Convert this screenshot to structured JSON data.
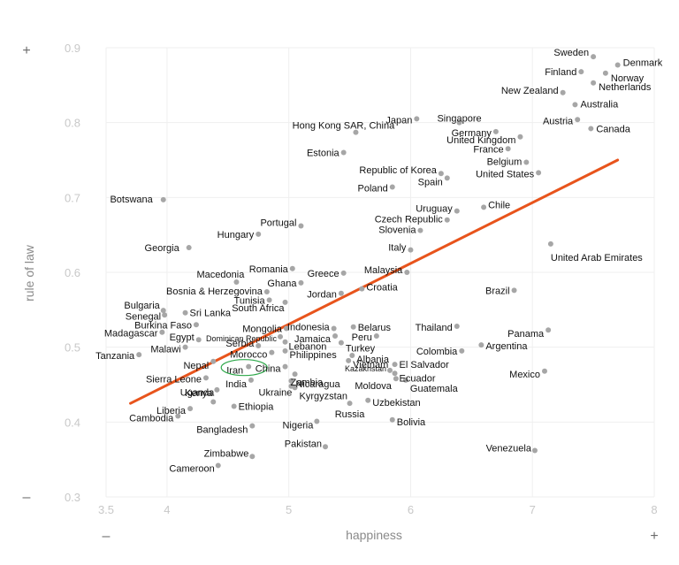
{
  "chart_data": {
    "type": "scatter",
    "xlabel": "happiness",
    "ylabel": "rule of law",
    "xlim": [
      3.5,
      8
    ],
    "ylim": [
      0.3,
      0.9
    ],
    "x_ticks": [
      "3.5",
      "4",
      "5",
      "6",
      "7",
      "8"
    ],
    "y_ticks": [
      "0.3",
      "0.4",
      "0.5",
      "0.6",
      "0.7",
      "0.8",
      "0.9"
    ],
    "grid": true,
    "axis_signs": {
      "y_top": "+",
      "y_bottom": "–",
      "x_left": "–",
      "x_right": "+"
    },
    "colors": {
      "points": "#a6a6a6",
      "trend": "#e8541c",
      "highlight": "#2ea84a",
      "grid": "#efefef",
      "ticks": "#c8c8c8"
    },
    "trend_line": {
      "x": [
        3.7,
        7.7
      ],
      "y": [
        0.425,
        0.75
      ]
    },
    "highlight": "Iran",
    "points": [
      {
        "label": "Sweden",
        "x": 7.5,
        "y": 0.888
      },
      {
        "label": "Denmark",
        "x": 7.7,
        "y": 0.877
      },
      {
        "label": "Finland",
        "x": 7.4,
        "y": 0.868
      },
      {
        "label": "Norway",
        "x": 7.6,
        "y": 0.866
      },
      {
        "label": "Netherlands",
        "x": 7.5,
        "y": 0.853
      },
      {
        "label": "New Zealand",
        "x": 7.25,
        "y": 0.84
      },
      {
        "label": "Australia",
        "x": 7.35,
        "y": 0.824
      },
      {
        "label": "Austria",
        "x": 7.37,
        "y": 0.804
      },
      {
        "label": "Canada",
        "x": 7.48,
        "y": 0.792
      },
      {
        "label": "Japan",
        "x": 6.05,
        "y": 0.805
      },
      {
        "label": "Singapore",
        "x": 6.4,
        "y": 0.8
      },
      {
        "label": "Germany",
        "x": 6.7,
        "y": 0.788
      },
      {
        "label": "United Kingdom",
        "x": 6.9,
        "y": 0.781
      },
      {
        "label": "France",
        "x": 6.8,
        "y": 0.765
      },
      {
        "label": "Belgium",
        "x": 6.95,
        "y": 0.747
      },
      {
        "label": "United States",
        "x": 7.05,
        "y": 0.733
      },
      {
        "label": "Hong Kong SAR, China",
        "x": 5.55,
        "y": 0.787
      },
      {
        "label": "Estonia",
        "x": 5.45,
        "y": 0.76
      },
      {
        "label": "Republic of Korea",
        "x": 6.25,
        "y": 0.732
      },
      {
        "label": "Spain",
        "x": 6.3,
        "y": 0.726
      },
      {
        "label": "Poland",
        "x": 5.85,
        "y": 0.714
      },
      {
        "label": "Botswana",
        "x": 3.97,
        "y": 0.697
      },
      {
        "label": "Uruguay",
        "x": 6.38,
        "y": 0.682
      },
      {
        "label": "Chile",
        "x": 6.6,
        "y": 0.687
      },
      {
        "label": "Czech Republic",
        "x": 6.3,
        "y": 0.67
      },
      {
        "label": "Slovenia",
        "x": 6.08,
        "y": 0.656
      },
      {
        "label": "Portugal",
        "x": 5.1,
        "y": 0.662
      },
      {
        "label": "Hungary",
        "x": 4.75,
        "y": 0.651
      },
      {
        "label": "Georgia",
        "x": 4.18,
        "y": 0.633
      },
      {
        "label": "Italy",
        "x": 6.0,
        "y": 0.63
      },
      {
        "label": "United Arab Emirates",
        "x": 7.15,
        "y": 0.638
      },
      {
        "label": "Romania",
        "x": 5.03,
        "y": 0.605
      },
      {
        "label": "Malaysia",
        "x": 5.97,
        "y": 0.6
      },
      {
        "label": "Greece",
        "x": 5.45,
        "y": 0.599
      },
      {
        "label": "Macedonia",
        "x": 4.57,
        "y": 0.587
      },
      {
        "label": "Ghana",
        "x": 5.1,
        "y": 0.586
      },
      {
        "label": "Croatia",
        "x": 5.6,
        "y": 0.578
      },
      {
        "label": "Jordan",
        "x": 5.43,
        "y": 0.572
      },
      {
        "label": "Brazil",
        "x": 6.85,
        "y": 0.576
      },
      {
        "label": "Bosnia & Herzegovina",
        "x": 4.82,
        "y": 0.574
      },
      {
        "label": "Tunisia",
        "x": 4.84,
        "y": 0.563
      },
      {
        "label": "South Africa",
        "x": 4.97,
        "y": 0.56
      },
      {
        "label": "Bulgaria",
        "x": 3.97,
        "y": 0.549
      },
      {
        "label": "Sri Lanka",
        "x": 4.15,
        "y": 0.546
      },
      {
        "label": "Senegal",
        "x": 3.98,
        "y": 0.543
      },
      {
        "label": "Burkina Faso",
        "x": 4.24,
        "y": 0.53
      },
      {
        "label": "Mongolia",
        "x": 4.98,
        "y": 0.525
      },
      {
        "label": "Indonesia",
        "x": 5.37,
        "y": 0.525
      },
      {
        "label": "Belarus",
        "x": 5.53,
        "y": 0.527
      },
      {
        "label": "Thailand",
        "x": 6.38,
        "y": 0.528
      },
      {
        "label": "Panama",
        "x": 7.13,
        "y": 0.523
      },
      {
        "label": "Madagascar",
        "x": 3.96,
        "y": 0.52
      },
      {
        "label": "Jamaica",
        "x": 5.38,
        "y": 0.515
      },
      {
        "label": "Peru",
        "x": 5.72,
        "y": 0.515
      },
      {
        "label": "Dominican Republic",
        "x": 4.93,
        "y": 0.514
      },
      {
        "label": "Egypt",
        "x": 4.26,
        "y": 0.51
      },
      {
        "label": "Lebanon",
        "x": 4.97,
        "y": 0.507
      },
      {
        "label": "Turkey",
        "x": 5.43,
        "y": 0.506
      },
      {
        "label": "Argentina",
        "x": 6.58,
        "y": 0.503
      },
      {
        "label": "Serbia",
        "x": 4.75,
        "y": 0.502
      },
      {
        "label": "Malawi",
        "x": 4.15,
        "y": 0.5
      },
      {
        "label": "Philippines",
        "x": 4.97,
        "y": 0.495
      },
      {
        "label": "Colombia",
        "x": 6.42,
        "y": 0.495
      },
      {
        "label": "Morocco",
        "x": 4.86,
        "y": 0.493
      },
      {
        "label": "Albania",
        "x": 5.52,
        "y": 0.489
      },
      {
        "label": "Tanzania",
        "x": 3.77,
        "y": 0.49
      },
      {
        "label": "Nepal",
        "x": 4.38,
        "y": 0.481
      },
      {
        "label": "Vietnam",
        "x": 5.49,
        "y": 0.482
      },
      {
        "label": "El Salvador",
        "x": 5.87,
        "y": 0.477
      },
      {
        "label": "Iran",
        "x": 4.67,
        "y": 0.474
      },
      {
        "label": "China",
        "x": 4.97,
        "y": 0.474
      },
      {
        "label": "Mexico",
        "x": 7.1,
        "y": 0.468
      },
      {
        "label": "Kazakhstan",
        "x": 5.83,
        "y": 0.469
      },
      {
        "label": "Zambia",
        "x": 5.05,
        "y": 0.464
      },
      {
        "label": "Ecuador",
        "x": 5.87,
        "y": 0.465
      },
      {
        "label": "Sierra Leone",
        "x": 4.32,
        "y": 0.459
      },
      {
        "label": "India",
        "x": 4.69,
        "y": 0.456
      },
      {
        "label": "Nicaragua",
        "x": 5.02,
        "y": 0.455
      },
      {
        "label": "Moldova",
        "x": 5.88,
        "y": 0.458
      },
      {
        "label": "Guatemala",
        "x": 5.96,
        "y": 0.456
      },
      {
        "label": "Ukraine",
        "x": 5.02,
        "y": 0.448
      },
      {
        "label": "Kyrgyzstan",
        "x": 5.05,
        "y": 0.446
      },
      {
        "label": "Kenya",
        "x": 4.41,
        "y": 0.443
      },
      {
        "label": "Uganda",
        "x": 4.38,
        "y": 0.427
      },
      {
        "label": "Uzbekistan",
        "x": 5.65,
        "y": 0.429
      },
      {
        "label": "Russia",
        "x": 5.5,
        "y": 0.425
      },
      {
        "label": "Ethiopia",
        "x": 4.55,
        "y": 0.421
      },
      {
        "label": "Liberia",
        "x": 4.19,
        "y": 0.418
      },
      {
        "label": "Cambodia",
        "x": 4.09,
        "y": 0.408
      },
      {
        "label": "Nigeria",
        "x": 5.23,
        "y": 0.401
      },
      {
        "label": "Bolivia",
        "x": 5.85,
        "y": 0.403
      },
      {
        "label": "Bangladesh",
        "x": 4.7,
        "y": 0.395
      },
      {
        "label": "Pakistan",
        "x": 5.3,
        "y": 0.367
      },
      {
        "label": "Venezuela",
        "x": 7.02,
        "y": 0.362
      },
      {
        "label": "Zimbabwe",
        "x": 4.7,
        "y": 0.354
      },
      {
        "label": "Cameroon",
        "x": 4.42,
        "y": 0.342
      }
    ]
  }
}
